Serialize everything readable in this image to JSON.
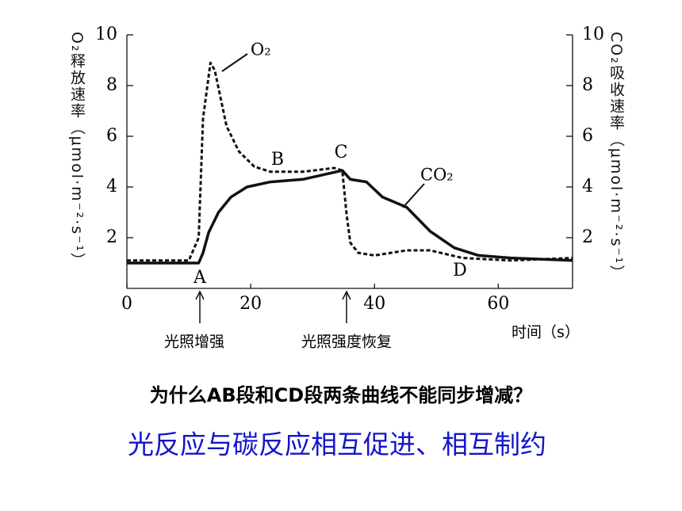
{
  "chart_data": {
    "type": "line",
    "xlim": [
      0,
      72
    ],
    "xticks": [
      0,
      20,
      40,
      60
    ],
    "ylim": [
      0,
      10
    ],
    "yticks": [
      2,
      4,
      6,
      8,
      10
    ],
    "y2lim": [
      0,
      10
    ],
    "y2ticks": [
      2,
      4,
      6,
      8,
      10
    ],
    "ylabel": "O₂释放速率（μmol·m⁻²·s⁻¹）",
    "y2label": "CO₂吸收速率（μmol·m⁻²·s⁻¹）",
    "xlabel": "时间（s）",
    "series": [
      {
        "name": "O₂",
        "color": "#111111",
        "dashed": true,
        "x": [
          0,
          10,
          11.6,
          12.3,
          13.5,
          14.2,
          16.1,
          18.1,
          20.6,
          23.2,
          28.4,
          33.5,
          34.8,
          35.5,
          36.1,
          37.4,
          40,
          45.2,
          49,
          54.2,
          62,
          72
        ],
        "values": [
          1.1,
          1.1,
          2,
          6.7,
          8.9,
          8.6,
          6.4,
          5.4,
          4.8,
          4.6,
          4.6,
          4.75,
          4.65,
          2.9,
          1.8,
          1.4,
          1.3,
          1.5,
          1.5,
          1.2,
          1.1,
          1.2
        ]
      },
      {
        "name": "CO₂",
        "color": "#111111",
        "dashed": false,
        "axis": "y2",
        "x": [
          0,
          11.6,
          12.3,
          13.2,
          14.8,
          16.8,
          19.4,
          23.2,
          28.4,
          34.8,
          36.1,
          38.7,
          41.3,
          45.2,
          49,
          52.9,
          56.8,
          62,
          72
        ],
        "values": [
          1.0,
          1.0,
          1.4,
          2.2,
          3.0,
          3.6,
          4.0,
          4.2,
          4.3,
          4.65,
          4.3,
          4.2,
          3.6,
          3.2,
          2.25,
          1.6,
          1.3,
          1.2,
          1.1
        ]
      }
    ],
    "point_labels": [
      "A",
      "B",
      "C",
      "D"
    ],
    "arrow_labels": [
      "光照增强",
      "光照强度恢复"
    ]
  },
  "question": "为什么AB段和CD段两条曲线不能同步增减？",
  "answer": "光反应与碳反应相互促进、相互制约"
}
